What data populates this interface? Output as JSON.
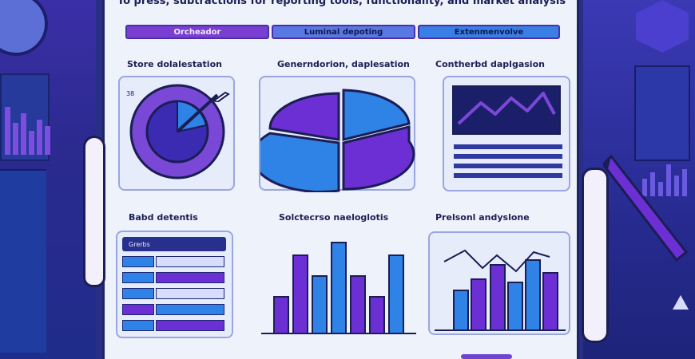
{
  "header": {
    "headline": "To press, subtractions for reporting tools, functionality, and market analysis"
  },
  "tabs": [
    {
      "label": "Orcheador"
    },
    {
      "label": "Luminal depoting"
    },
    {
      "label": "Extenmenvolve"
    }
  ],
  "sections": {
    "top_left_title": "Store dolalestation",
    "top_mid_title": "Generndorion, daplesation",
    "top_right_title": "Contherbd daplgasion",
    "bottom_left_title": "Babd detentis",
    "bottom_mid_title": "Solctecrso naeloglotis",
    "bottom_right_title": "Prelsonl andyslone"
  },
  "donut": {
    "corner_label": "38"
  },
  "list_card": {
    "header_label": "Grerbs"
  },
  "colors": {
    "purple": "#6c2fd4",
    "blue": "#2f82e6",
    "navy": "#1b1d55",
    "paper": "#eef2fb"
  },
  "icons": {
    "pen": "pen-icon",
    "triangle": "warning-triangle-icon"
  }
}
